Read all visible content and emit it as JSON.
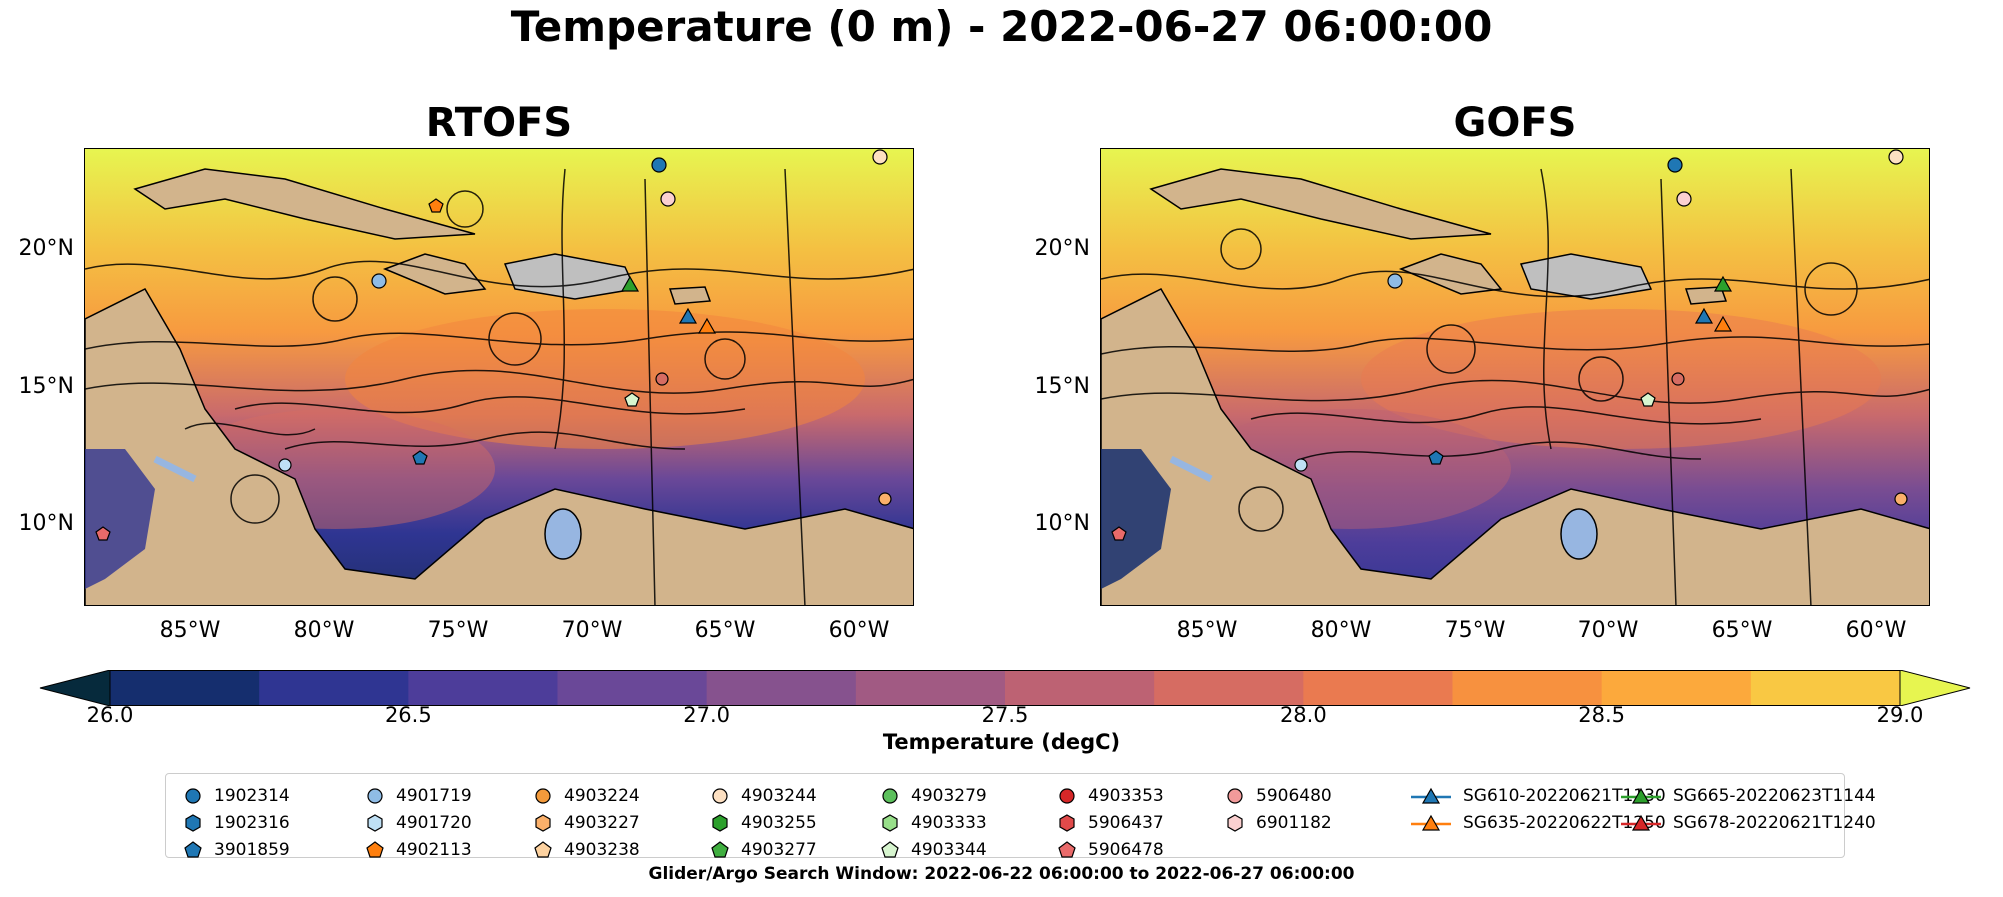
{
  "suptitle": "Temperature (0 m) - 2022-06-27 06:00:00",
  "panels": [
    {
      "title": "RTOFS"
    },
    {
      "title": "GOFS"
    }
  ],
  "lat_labels": [
    "20°N",
    "15°N",
    "10°N"
  ],
  "lon_labels": [
    "85°W",
    "80°W",
    "75°W",
    "70°W",
    "65°W",
    "60°W"
  ],
  "colorbar": {
    "label": "Temperature (degC)",
    "ticks": [
      "26.0",
      "26.5",
      "27.0",
      "27.5",
      "28.0",
      "28.5",
      "29.0"
    ],
    "colors": [
      "#062a3c",
      "#152e6e",
      "#2f3592",
      "#4d3d9a",
      "#6a4898",
      "#86528e",
      "#a15a83",
      "#bd6273",
      "#d66c62",
      "#ea7a50",
      "#f7913f",
      "#fca93c",
      "#f9c843",
      "#e7f550"
    ],
    "land_color": "#d2b48c",
    "lake_color": "#97b6e1"
  },
  "legend": [
    {
      "label": "1902314",
      "marker": "circle",
      "color": "#1f77b4"
    },
    {
      "label": "1902316",
      "marker": "hexagon",
      "color": "#1f77b4"
    },
    {
      "label": "3901859",
      "marker": "pentagon",
      "color": "#1f77b4"
    },
    {
      "label": "4901719",
      "marker": "circle",
      "color": "#8fbce6"
    },
    {
      "label": "4901720",
      "marker": "hexagon",
      "color": "#bfe0f5"
    },
    {
      "label": "4902113",
      "marker": "pentagon",
      "color": "#ff7f0e"
    },
    {
      "label": "4903224",
      "marker": "circle",
      "color": "#f39a3b"
    },
    {
      "label": "4903227",
      "marker": "hexagon",
      "color": "#fbb06a"
    },
    {
      "label": "4903238",
      "marker": "pentagon",
      "color": "#fdd2a0"
    },
    {
      "label": "4903244",
      "marker": "circle",
      "color": "#fde0c2"
    },
    {
      "label": "4903255",
      "marker": "hexagon",
      "color": "#2ca02c"
    },
    {
      "label": "4903277",
      "marker": "pentagon",
      "color": "#3fae3f"
    },
    {
      "label": "4903279",
      "marker": "circle",
      "color": "#5cc05c"
    },
    {
      "label": "4903333",
      "marker": "hexagon",
      "color": "#98df8a"
    },
    {
      "label": "4903344",
      "marker": "pentagon",
      "color": "#d7f5cf"
    },
    {
      "label": "4903353",
      "marker": "circle",
      "color": "#d62728"
    },
    {
      "label": "5906437",
      "marker": "hexagon",
      "color": "#e04a4a"
    },
    {
      "label": "5906478",
      "marker": "pentagon",
      "color": "#e96a6a"
    },
    {
      "label": "5906480",
      "marker": "circle",
      "color": "#f19a9a"
    },
    {
      "label": "6901182",
      "marker": "hexagon",
      "color": "#fbd0d0"
    },
    {
      "label": "SG610-20220621T1130",
      "marker": "triangle",
      "color": "#1f77b4"
    },
    {
      "label": "SG635-20220622T1250",
      "marker": "triangle",
      "color": "#ff7f0e"
    },
    {
      "label": "SG665-20220623T1144",
      "marker": "triangle",
      "color": "#2ca02c"
    },
    {
      "label": "SG678-20220621T1240",
      "marker": "triangle",
      "color": "#d62728"
    }
  ],
  "footer": "Glider/Argo Search Window: 2022-06-22 06:00:00 to 2022-06-27 06:00:00"
}
